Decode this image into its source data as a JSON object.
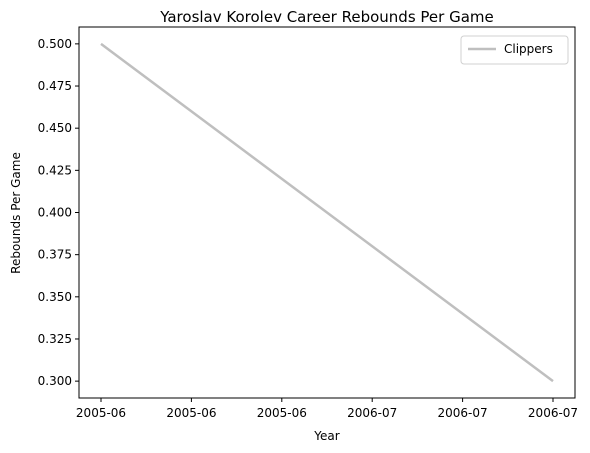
{
  "chart_data": {
    "type": "line",
    "title": "Yaroslav Korolev Career Rebounds Per Game",
    "xlabel": "Year",
    "ylabel": "Rebounds Per Game",
    "x": [
      "2005-06",
      "2006-07"
    ],
    "series": [
      {
        "name": "Clippers",
        "values": [
          0.5,
          0.3
        ],
        "color": "#bfbfbf"
      }
    ],
    "xticks": [
      "2005-06",
      "2005-06",
      "2005-06",
      "2006-07",
      "2006-07",
      "2006-07"
    ],
    "yticks": [
      "0.300",
      "0.325",
      "0.350",
      "0.375",
      "0.400",
      "0.425",
      "0.450",
      "0.475",
      "0.500"
    ],
    "ylim": [
      0.29,
      0.51
    ],
    "grid": false,
    "legend_position": "top-right"
  }
}
